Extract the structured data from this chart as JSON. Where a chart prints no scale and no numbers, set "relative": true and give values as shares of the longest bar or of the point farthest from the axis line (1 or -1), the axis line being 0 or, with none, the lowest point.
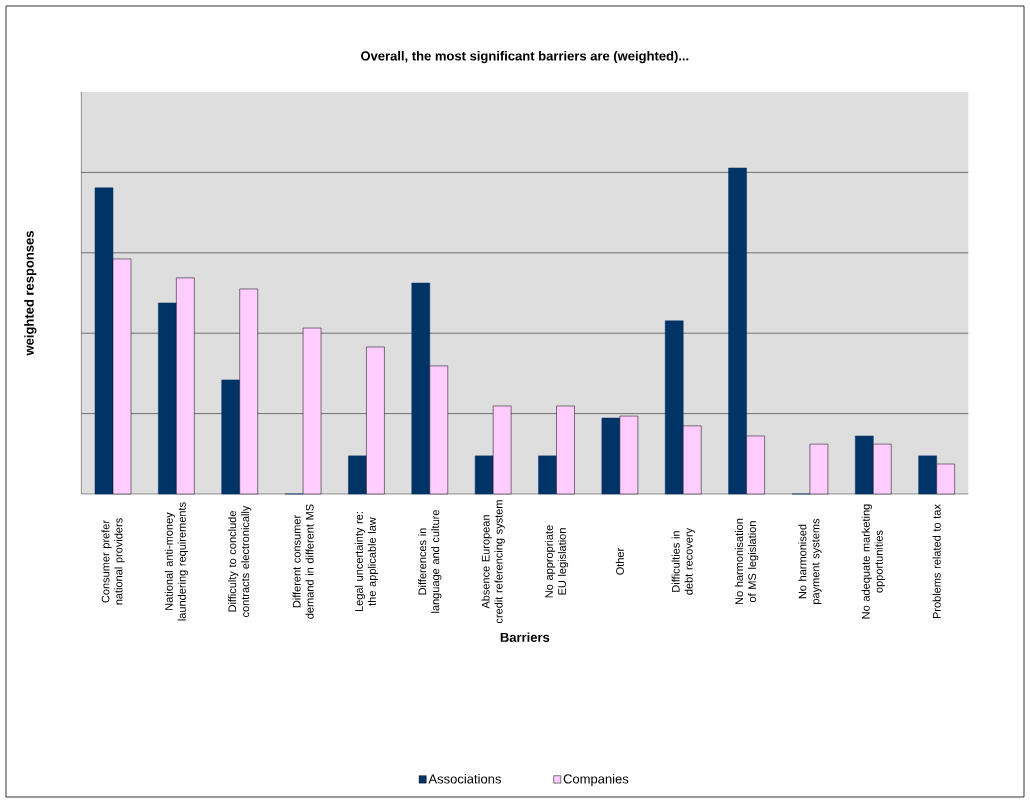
{
  "chart_data": {
    "type": "bar",
    "title": "Overall, the most significant barriers are (weighted)...",
    "xlabel": "Barriers",
    "ylabel": "weighted responses",
    "relative": true,
    "grid": "y",
    "legend": "bottom",
    "categories": [
      "Consumer prefer national providers",
      "National anti-money laundering requirements",
      "Difficulty to conclude contracts electronically",
      "Different consumer demand in different MS",
      "Legal uncertainty re: the applicable law",
      "Differences in language and culture",
      "Absence European credit referencing system",
      "No appropriate EU legislation",
      "Other",
      "Difficulties in debt recovery",
      "No harmonisation of MS legislation",
      "No harmonised payment systems",
      "No adequate marketing opportunities",
      "Problems related to tax"
    ],
    "series": [
      {
        "name": "Associations",
        "color": "#003366",
        "values": [
          0.939,
          0.586,
          0.35,
          0,
          0.117,
          0.647,
          0.117,
          0.117,
          0.233,
          0.531,
          1,
          0,
          0.178,
          0.117
        ]
      },
      {
        "name": "Companies",
        "color": "#ffccff",
        "values": [
          0.721,
          0.663,
          0.629,
          0.509,
          0.451,
          0.393,
          0.27,
          0.27,
          0.239,
          0.209,
          0.178,
          0.153,
          0.153,
          0.092
        ]
      }
    ]
  }
}
